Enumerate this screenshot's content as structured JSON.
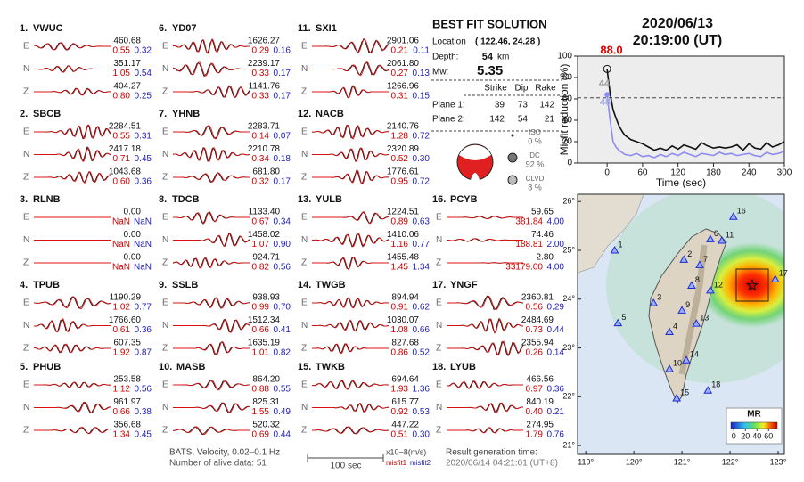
{
  "header": {
    "date": "2020/06/13",
    "time": "20:19:00  (UT)"
  },
  "components": [
    "E",
    "N",
    "Z"
  ],
  "stations": [
    {
      "number": "1.",
      "name": "VWUC",
      "traces": [
        {
          "amp": "460.68",
          "misfit1": "0.55",
          "misfit2": "0.32"
        },
        {
          "amp": "351.17",
          "misfit1": "1.05",
          "misfit2": "0.54"
        },
        {
          "amp": "404.27",
          "misfit1": "0.80",
          "misfit2": "0.25"
        }
      ]
    },
    {
      "number": "2.",
      "name": "SBCB",
      "traces": [
        {
          "amp": "2284.51",
          "misfit1": "0.55",
          "misfit2": "0.31"
        },
        {
          "amp": "2417.18",
          "misfit1": "0.71",
          "misfit2": "0.45"
        },
        {
          "amp": "1043.68",
          "misfit1": "0.60",
          "misfit2": "0.36"
        }
      ]
    },
    {
      "number": "3.",
      "name": "RLNB",
      "traces": [
        {
          "amp": "0.00",
          "misfit1": "NaN",
          "misfit2": "NaN"
        },
        {
          "amp": "0.00",
          "misfit1": "NaN",
          "misfit2": "NaN"
        },
        {
          "amp": "0.00",
          "misfit1": "NaN",
          "misfit2": "NaN"
        }
      ]
    },
    {
      "number": "4.",
      "name": "TPUB",
      "traces": [
        {
          "amp": "1190.29",
          "misfit1": "1.02",
          "misfit2": "0.77"
        },
        {
          "amp": "1766.60",
          "misfit1": "0.61",
          "misfit2": "0.36"
        },
        {
          "amp": "607.35",
          "misfit1": "1.92",
          "misfit2": "0.87"
        }
      ]
    },
    {
      "number": "5.",
      "name": "PHUB",
      "traces": [
        {
          "amp": "253.58",
          "misfit1": "1.12",
          "misfit2": "0.56"
        },
        {
          "amp": "961.97",
          "misfit1": "0.66",
          "misfit2": "0.38"
        },
        {
          "amp": "356.68",
          "misfit1": "1.34",
          "misfit2": "0.45"
        }
      ]
    },
    {
      "number": "6.",
      "name": "YD07",
      "traces": [
        {
          "amp": "1626.27",
          "misfit1": "0.29",
          "misfit2": "0.16"
        },
        {
          "amp": "2239.17",
          "misfit1": "0.33",
          "misfit2": "0.17"
        },
        {
          "amp": "1141.76",
          "misfit1": "0.33",
          "misfit2": "0.17"
        }
      ]
    },
    {
      "number": "7.",
      "name": "YHNB",
      "traces": [
        {
          "amp": "2283.71",
          "misfit1": "0.14",
          "misfit2": "0.07"
        },
        {
          "amp": "2210.78",
          "misfit1": "0.34",
          "misfit2": "0.18"
        },
        {
          "amp": "681.80",
          "misfit1": "0.32",
          "misfit2": "0.17"
        }
      ]
    },
    {
      "number": "8.",
      "name": "TDCB",
      "traces": [
        {
          "amp": "1133.40",
          "misfit1": "0.67",
          "misfit2": "0.34"
        },
        {
          "amp": "1458.02",
          "misfit1": "1.07",
          "misfit2": "0.90"
        },
        {
          "amp": "924.71",
          "misfit1": "0.82",
          "misfit2": "0.56"
        }
      ]
    },
    {
      "number": "9.",
      "name": "SSLB",
      "traces": [
        {
          "amp": "938.93",
          "misfit1": "0.99",
          "misfit2": "0.70"
        },
        {
          "amp": "1512.34",
          "misfit1": "0.66",
          "misfit2": "0.41"
        },
        {
          "amp": "1635.19",
          "misfit1": "1.01",
          "misfit2": "0.82"
        }
      ]
    },
    {
      "number": "10.",
      "name": "MASB",
      "traces": [
        {
          "amp": "864.20",
          "misfit1": "0.88",
          "misfit2": "0.55"
        },
        {
          "amp": "825.31",
          "misfit1": "1.55",
          "misfit2": "0.49"
        },
        {
          "amp": "520.32",
          "misfit1": "0.69",
          "misfit2": "0.44"
        }
      ]
    },
    {
      "number": "11.",
      "name": "SXI1",
      "traces": [
        {
          "amp": "2901.06",
          "misfit1": "0.21",
          "misfit2": "0.11"
        },
        {
          "amp": "2061.80",
          "misfit1": "0.27",
          "misfit2": "0.13"
        },
        {
          "amp": "1266.96",
          "misfit1": "0.31",
          "misfit2": "0.15"
        }
      ]
    },
    {
      "number": "12.",
      "name": "NACB",
      "traces": [
        {
          "amp": "2140.76",
          "misfit1": "1.28",
          "misfit2": "0.72"
        },
        {
          "amp": "2320.89",
          "misfit1": "0.52",
          "misfit2": "0.30"
        },
        {
          "amp": "1776.61",
          "misfit1": "0.95",
          "misfit2": "0.72"
        }
      ]
    },
    {
      "number": "13.",
      "name": "YULB",
      "traces": [
        {
          "amp": "1224.51",
          "misfit1": "0.89",
          "misfit2": "0.63"
        },
        {
          "amp": "1410.06",
          "misfit1": "1.16",
          "misfit2": "0.77"
        },
        {
          "amp": "1455.48",
          "misfit1": "1.45",
          "misfit2": "1.34"
        }
      ]
    },
    {
      "number": "14.",
      "name": "TWGB",
      "traces": [
        {
          "amp": "894.94",
          "misfit1": "0.91",
          "misfit2": "0.62"
        },
        {
          "amp": "1030.07",
          "misfit1": "1.08",
          "misfit2": "0.66"
        },
        {
          "amp": "827.68",
          "misfit1": "0.86",
          "misfit2": "0.52"
        }
      ]
    },
    {
      "number": "15.",
      "name": "TWKB",
      "traces": [
        {
          "amp": "694.64",
          "misfit1": "1.93",
          "misfit2": "1.36"
        },
        {
          "amp": "615.77",
          "misfit1": "0.92",
          "misfit2": "0.53"
        },
        {
          "amp": "447.22",
          "misfit1": "0.51",
          "misfit2": "0.30"
        }
      ]
    },
    {
      "number": "16.",
      "name": "PCYB",
      "traces": [
        {
          "amp": "59.65",
          "misfit1": "381.84",
          "misfit2": "4.00"
        },
        {
          "amp": "74.46",
          "misfit1": "188.81",
          "misfit2": "2.00"
        },
        {
          "amp": "2.80",
          "misfit1": "33179.00",
          "misfit2": "4.00"
        }
      ]
    },
    {
      "number": "17.",
      "name": "YNGF",
      "traces": [
        {
          "amp": "2360.81",
          "misfit1": "0.56",
          "misfit2": "0.29"
        },
        {
          "amp": "2484.69",
          "misfit1": "0.73",
          "misfit2": "0.44"
        },
        {
          "amp": "2355.94",
          "misfit1": "0.26",
          "misfit2": "0.14"
        }
      ]
    },
    {
      "number": "18.",
      "name": "LYUB",
      "traces": [
        {
          "amp": "466.56",
          "misfit1": "0.97",
          "misfit2": "0.36"
        },
        {
          "amp": "840.19",
          "misfit1": "0.40",
          "misfit2": "0.21"
        },
        {
          "amp": "274.95",
          "misfit1": "1.79",
          "misfit2": "0.76"
        }
      ]
    }
  ],
  "solution": {
    "title": "BEST FIT SOLUTION",
    "location_label": "Location",
    "location": "( 122.46, 24.28 )",
    "depth_label": "Depth:",
    "depth": "54",
    "depth_unit": "km",
    "mw_label": "Mw:",
    "mw": "5.35",
    "columns": [
      "Strike",
      "Dip",
      "Rake"
    ],
    "planes": [
      {
        "label": "Plane 1:",
        "values": [
          "39",
          "73",
          "142"
        ]
      },
      {
        "label": "Plane 2:",
        "values": [
          "142",
          "54",
          "21"
        ]
      }
    ],
    "components": [
      {
        "name": "ISO",
        "percent": "0 %"
      },
      {
        "name": "DC",
        "percent": "92 %"
      },
      {
        "name": "CLVD",
        "percent": "8 %"
      }
    ]
  },
  "chart_data": {
    "type": "line",
    "xlabel": "Time (sec)",
    "ylabel": "Misfit reduction (%)",
    "xlim": [
      -50,
      300
    ],
    "ylim": [
      0,
      100
    ],
    "xticks": [
      0,
      60,
      120,
      180,
      240,
      300
    ],
    "yticks": [
      0,
      20,
      40,
      60,
      80,
      100
    ],
    "reference_line": 61,
    "x": [
      0,
      5,
      10,
      15,
      20,
      25,
      30,
      40,
      50,
      60,
      70,
      80,
      90,
      100,
      110,
      120,
      130,
      140,
      150,
      160,
      170,
      180,
      190,
      200,
      210,
      220,
      230,
      240,
      250,
      260,
      270,
      280,
      290,
      300
    ],
    "series": [
      {
        "color": "#111111",
        "values": [
          88,
          65,
          50,
          42,
          35,
          30,
          26,
          22,
          20,
          18,
          15,
          12,
          14,
          12,
          16,
          13,
          17,
          15,
          13,
          19,
          16,
          14,
          15,
          14,
          15,
          17,
          12,
          18,
          14,
          13,
          19,
          15,
          17,
          20
        ]
      },
      {
        "color": "#8c8cf0",
        "values": [
          64,
          40,
          20,
          15,
          12,
          10,
          8,
          7,
          9,
          6,
          7,
          5,
          8,
          6,
          9,
          7,
          10,
          8,
          6,
          9,
          8,
          7,
          10,
          8,
          9,
          7,
          8,
          9,
          7,
          6,
          10,
          8,
          9,
          11
        ]
      }
    ],
    "annotations": [
      {
        "text": "88.0",
        "color": "#e00000"
      },
      {
        "text": "44",
        "color": "#9a9a9a"
      },
      {
        "text": "48",
        "color": "#a8b0e8"
      }
    ]
  },
  "map": {
    "xlim": [
      118.83,
      123.13
    ],
    "ylim": [
      20.82,
      26.15
    ],
    "xticks": [
      {
        "value": 119,
        "label": "119°"
      },
      {
        "value": 120,
        "label": "120°"
      },
      {
        "value": 121,
        "label": "121°"
      },
      {
        "value": 122,
        "label": "122°"
      },
      {
        "value": 123,
        "label": "123°"
      }
    ],
    "yticks": [
      {
        "value": 21,
        "label": "21°"
      },
      {
        "value": 22,
        "label": "22°"
      },
      {
        "value": 23,
        "label": "23°"
      },
      {
        "value": 24,
        "label": "24°"
      },
      {
        "value": 25,
        "label": "25°"
      },
      {
        "value": 26,
        "label": "26°"
      }
    ],
    "epicenter": {
      "lon": 122.46,
      "lat": 24.28
    },
    "stations": [
      {
        "label": "1",
        "lon": 119.6,
        "lat": 25.0
      },
      {
        "label": "2",
        "lon": 121.04,
        "lat": 24.81
      },
      {
        "label": "3",
        "lon": 120.41,
        "lat": 23.92
      },
      {
        "label": "4",
        "lon": 120.74,
        "lat": 23.33
      },
      {
        "label": "5",
        "lon": 119.67,
        "lat": 23.51
      },
      {
        "label": "6",
        "lon": 121.59,
        "lat": 25.23
      },
      {
        "label": "7",
        "lon": 121.37,
        "lat": 24.7
      },
      {
        "label": "8",
        "lon": 121.2,
        "lat": 24.28
      },
      {
        "label": "9",
        "lon": 121.0,
        "lat": 23.77
      },
      {
        "label": "10",
        "lon": 120.74,
        "lat": 22.57
      },
      {
        "label": "11",
        "lon": 121.83,
        "lat": 25.2
      },
      {
        "label": "12",
        "lon": 121.59,
        "lat": 24.18
      },
      {
        "label": "13",
        "lon": 121.3,
        "lat": 23.5
      },
      {
        "label": "14",
        "lon": 121.09,
        "lat": 22.75
      },
      {
        "label": "15",
        "lon": 120.89,
        "lat": 21.97
      },
      {
        "label": "16",
        "lon": 122.07,
        "lat": 25.69
      },
      {
        "label": "17",
        "lon": 122.94,
        "lat": 24.41
      },
      {
        "label": "18",
        "lon": 121.54,
        "lat": 22.13
      }
    ],
    "colorbar": {
      "title": "MR",
      "lim": [
        -5,
        75
      ],
      "ticks": [
        0,
        20,
        40,
        60
      ]
    }
  },
  "footer": {
    "source": "BATS, Velocity, 0.02–0.1 Hz",
    "alive": "Number of alive data: 51",
    "scale": "100 sec",
    "unit": "x10−8(m/s)",
    "misfit1": "misfit1",
    "misfit2": "misfit2",
    "generated_label": "Result generation time:",
    "generated": "2020/06/14 04:21:01 (UT+8)"
  }
}
